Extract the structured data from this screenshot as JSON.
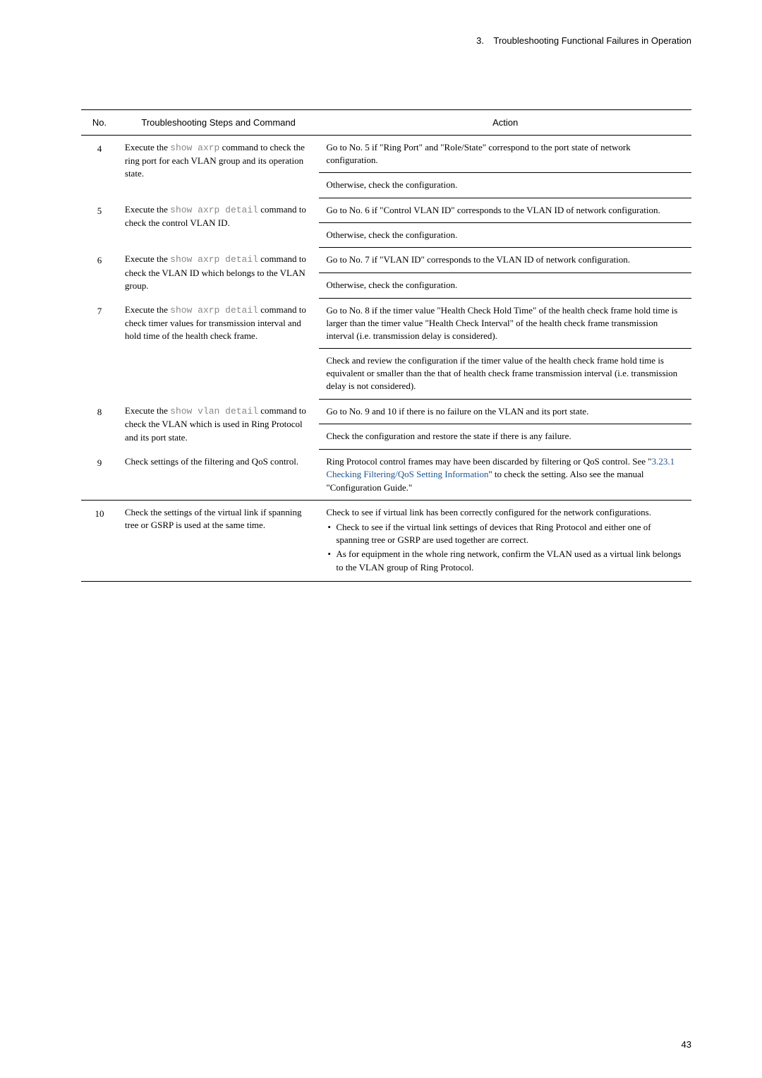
{
  "header": {
    "section_number": "3.",
    "section_title": "Troubleshooting Functional Failures in Operation"
  },
  "table": {
    "headers": {
      "no": "No.",
      "steps": "Troubleshooting Steps and Command",
      "action": "Action"
    },
    "rows": [
      {
        "no": "4",
        "steps_pre": "Execute the ",
        "steps_code": "show axrp",
        "steps_post": " command to check the ring port for each VLAN group and its operation state.",
        "action_a": "Go to No. 5 if \"Ring Port\" and \"Role/State\" correspond to the port state of network configuration.",
        "action_b": "Otherwise, check the configuration."
      },
      {
        "no": "5",
        "steps_pre": "Execute the ",
        "steps_code": "show axrp detail",
        "steps_post": " command to check the control VLAN ID.",
        "action_a": "Go to No. 6 if \"Control VLAN ID\" corresponds to the VLAN ID of network configuration.",
        "action_b": "Otherwise, check the configuration."
      },
      {
        "no": "6",
        "steps_pre": "Execute the ",
        "steps_code": "show axrp detail",
        "steps_post": " command to check the VLAN ID which belongs to the VLAN group.",
        "action_a": "Go to No. 7 if \"VLAN ID\" corresponds to the VLAN ID of network configuration.",
        "action_b": "Otherwise, check the configuration."
      },
      {
        "no": "7",
        "steps_pre": "Execute the ",
        "steps_code": "show axrp detail",
        "steps_post": " command to check timer values for transmission interval and hold time of the health check frame.",
        "action_a": "Go to No. 8 if the timer value \"Health Check Hold Time\" of the health check frame hold time is larger than the timer value \"Health Check Interval\" of the health check frame transmission interval (i.e. transmission delay is considered).",
        "action_b": "Check and review the configuration if the timer value of the health check frame hold time is equivalent or smaller than the that of health check frame transmission interval (i.e. transmission delay is not considered)."
      },
      {
        "no": "8",
        "steps_pre": "Execute the ",
        "steps_code": "show vlan detail",
        "steps_post": " command to check the VLAN which is used in Ring Protocol and its port state.",
        "action_a": "Go to No. 9 and 10 if there is no failure on the VLAN and its port state.",
        "action_b": "Check the configuration and restore the state if there is any failure."
      },
      {
        "no": "9",
        "steps_plain": "Check settings of the filtering and QoS control.",
        "action_pre": "Ring Protocol control frames may have been discarded by filtering or QoS control. See \"",
        "action_link": "3.23.1 Checking Filtering/QoS Setting Information",
        "action_post": "\" to check the setting. Also see the manual \"Configuration Guide.\""
      },
      {
        "no": "10",
        "steps_plain": "Check the settings of the virtual link if spanning tree or GSRP is used at the same time.",
        "action_intro": "Check to see if virtual link has been correctly configured for the network configurations.",
        "action_bullets": [
          "Check to see if the virtual link settings of devices that Ring Protocol and either one of spanning tree or GSRP are used together are correct.",
          "As for equipment in the whole ring network, confirm the VLAN used as a virtual link belongs to the VLAN group of Ring Protocol."
        ]
      }
    ]
  },
  "page_number": "43"
}
